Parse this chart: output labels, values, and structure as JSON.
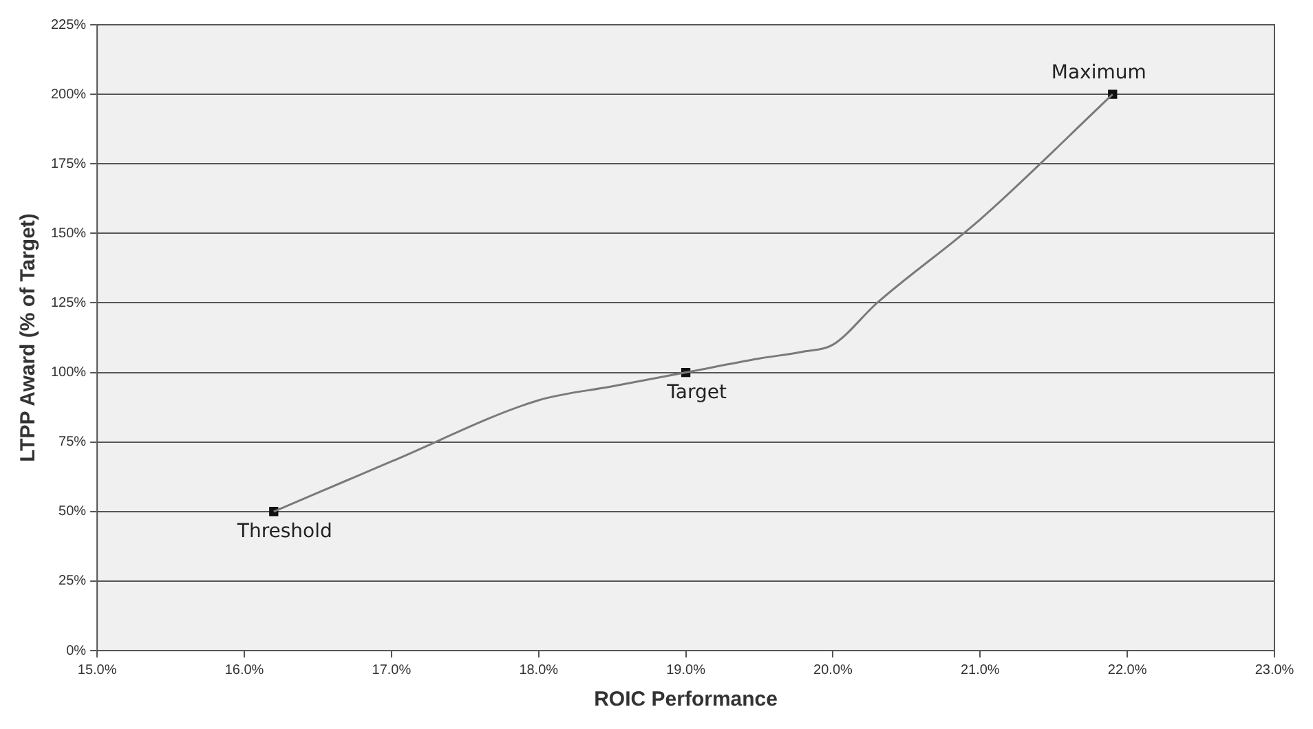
{
  "chart_data": {
    "type": "line",
    "xlabel": "ROIC Performance",
    "ylabel": "LTPP Award (% of Target)",
    "xlim": [
      15,
      23
    ],
    "xticks": [
      {
        "value": 15,
        "label": "15.0%"
      },
      {
        "value": 16,
        "label": "16.0%"
      },
      {
        "value": 17,
        "label": "17.0%"
      },
      {
        "value": 18,
        "label": "18.0%"
      },
      {
        "value": 19,
        "label": "19.0%"
      },
      {
        "value": 20,
        "label": "20.0%"
      },
      {
        "value": 21,
        "label": "21.0%"
      },
      {
        "value": 22,
        "label": "22.0%"
      },
      {
        "value": 23,
        "label": "23.0%"
      }
    ],
    "ylim": [
      0,
      225
    ],
    "yticks": [
      {
        "value": 0,
        "label": "0%"
      },
      {
        "value": 25,
        "label": "25%"
      },
      {
        "value": 50,
        "label": "50%"
      },
      {
        "value": 75,
        "label": "75%"
      },
      {
        "value": 100,
        "label": "100%"
      },
      {
        "value": 125,
        "label": "125%"
      },
      {
        "value": 150,
        "label": "150%"
      },
      {
        "value": 175,
        "label": "175%"
      },
      {
        "value": 200,
        "label": "200%"
      },
      {
        "value": 225,
        "label": "225%"
      }
    ],
    "grid": "y",
    "legend": false,
    "series": [
      {
        "type": "line",
        "color": "#7a7a7a",
        "marker": "none",
        "x": [
          16.2,
          17,
          18,
          18.5,
          19,
          19.5,
          19.8,
          20,
          20.3,
          21,
          21.9
        ],
        "values": [
          50,
          68,
          90,
          95,
          100,
          105,
          107.5,
          110,
          125,
          155,
          200
        ]
      },
      {
        "type": "scatter",
        "color": "#111111",
        "marker": "square",
        "x": [
          16.2,
          19,
          21.9
        ],
        "values": [
          50,
          100,
          200
        ]
      }
    ],
    "annotations": [
      {
        "text": "Threshold",
        "x": 16.2,
        "y": 50
      },
      {
        "text": "Target",
        "x": 19,
        "y": 100
      },
      {
        "text": "Maximum",
        "x": 21.9,
        "y": 200
      }
    ]
  }
}
